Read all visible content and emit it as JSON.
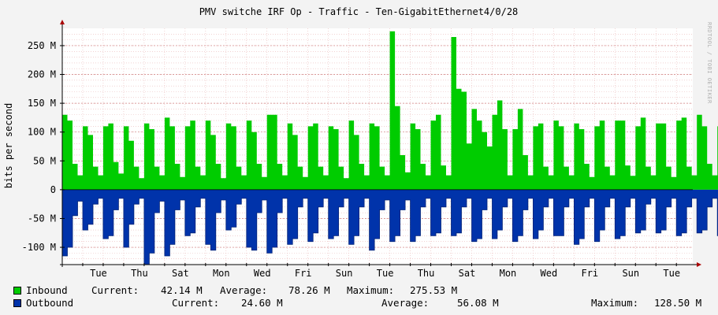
{
  "colors": {
    "background": "#f3f3f3",
    "plot_background": "#ffffff",
    "grid_minor": "#e9b8b8",
    "inbound": "#00cc00",
    "outbound": "#0033aa",
    "axis": "#000000",
    "arrow": "#aa0000"
  },
  "watermark": "RRDTOOL / TOBI OETIKER",
  "chart_data": {
    "type": "area",
    "title": "PMV switche IRF Op - Traffic - Ten-GigabitEthernet4/0/28",
    "ylabel": "bits per second",
    "xlabel": "",
    "ylim": [
      -130000000,
      280000000
    ],
    "y_ticks": [
      {
        "value": 250000000,
        "label": "250 M"
      },
      {
        "value": 200000000,
        "label": "200 M"
      },
      {
        "value": 150000000,
        "label": "150 M"
      },
      {
        "value": 100000000,
        "label": "100 M"
      },
      {
        "value": 50000000,
        "label": "50 M"
      },
      {
        "value": 0,
        "label": "0"
      },
      {
        "value": -50000000,
        "label": "-50 M"
      },
      {
        "value": -100000000,
        "label": "-100 M"
      }
    ],
    "x_ticks": [
      "Tue",
      "Thu",
      "Sat",
      "Mon",
      "Wed",
      "Fri",
      "Sun",
      "Tue",
      "Thu",
      "Sat",
      "Mon",
      "Wed",
      "Fri",
      "Sun",
      "Tue"
    ],
    "x_tick_day_index": [
      2,
      4,
      6,
      8,
      10,
      12,
      14,
      16,
      18,
      20,
      22,
      24,
      26,
      28,
      30
    ],
    "days": 30.8,
    "samples_per_day": 4,
    "series": [
      {
        "name": "Inbound",
        "unit": "Mbps",
        "values": [
          130,
          120,
          45,
          25,
          110,
          95,
          40,
          25,
          110,
          115,
          48,
          28,
          110,
          85,
          40,
          20,
          115,
          105,
          40,
          25,
          125,
          110,
          45,
          22,
          110,
          120,
          40,
          25,
          120,
          95,
          45,
          20,
          115,
          110,
          40,
          25,
          120,
          100,
          45,
          22,
          130,
          130,
          45,
          25,
          115,
          95,
          40,
          22,
          110,
          115,
          40,
          25,
          110,
          105,
          40,
          20,
          120,
          95,
          45,
          25,
          115,
          110,
          40,
          25,
          275,
          145,
          60,
          30,
          115,
          105,
          45,
          25,
          120,
          130,
          42,
          25,
          265,
          175,
          170,
          80,
          140,
          120,
          100,
          75,
          130,
          155,
          105,
          25,
          105,
          140,
          60,
          25,
          110,
          115,
          40,
          25,
          120,
          110,
          40,
          25,
          115,
          105,
          45,
          22,
          110,
          120,
          40,
          25,
          120,
          120,
          42,
          24,
          110,
          125,
          40,
          25,
          115,
          115,
          40,
          22,
          120,
          125,
          40,
          25,
          130,
          110,
          45,
          25,
          110,
          120,
          40,
          20,
          125,
          115,
          45,
          22,
          110,
          110,
          40,
          25,
          120,
          110,
          42,
          25,
          110,
          120,
          40,
          20,
          115,
          105,
          45,
          22,
          110,
          115,
          40,
          25,
          112,
          110,
          40,
          24,
          120,
          40,
          42
        ]
      },
      {
        "name": "Outbound",
        "unit": "Mbps",
        "values": [
          115,
          100,
          45,
          20,
          70,
          60,
          25,
          15,
          85,
          80,
          35,
          15,
          100,
          60,
          25,
          15,
          130,
          110,
          40,
          20,
          115,
          95,
          35,
          18,
          80,
          75,
          30,
          15,
          95,
          105,
          40,
          18,
          70,
          65,
          25,
          15,
          100,
          105,
          40,
          18,
          110,
          100,
          40,
          15,
          95,
          85,
          30,
          15,
          90,
          75,
          30,
          15,
          85,
          80,
          30,
          15,
          95,
          80,
          30,
          15,
          105,
          85,
          35,
          18,
          90,
          80,
          35,
          18,
          90,
          80,
          30,
          15,
          80,
          75,
          30,
          15,
          80,
          75,
          30,
          15,
          90,
          85,
          35,
          15,
          85,
          70,
          30,
          15,
          90,
          80,
          35,
          15,
          85,
          70,
          30,
          15,
          80,
          80,
          30,
          15,
          95,
          85,
          30,
          15,
          90,
          70,
          30,
          15,
          85,
          80,
          30,
          15,
          75,
          70,
          25,
          15,
          75,
          70,
          30,
          15,
          80,
          75,
          30,
          15,
          75,
          70,
          30,
          15,
          80,
          75,
          30,
          15,
          70,
          80,
          30,
          15,
          100,
          95,
          35,
          18,
          80,
          75,
          30,
          15,
          70,
          65,
          25,
          15,
          90,
          75,
          30,
          15,
          110,
          80,
          30,
          15,
          70,
          45,
          25
        ]
      }
    ],
    "grid": true,
    "legend_placement": "bottom"
  },
  "legend": {
    "rows": [
      {
        "name": "Inbound",
        "current_label": "Current:",
        "current": "42.14 M",
        "average_label": "Average:",
        "average": "78.26 M",
        "maximum_label": "Maximum:",
        "maximum": "275.53 M"
      },
      {
        "name": "Outbound",
        "current_label": "Current:",
        "current": "24.60 M",
        "average_label": "Average:",
        "average": "56.08 M",
        "maximum_label": "Maximum:",
        "maximum": "128.50 M"
      }
    ]
  }
}
